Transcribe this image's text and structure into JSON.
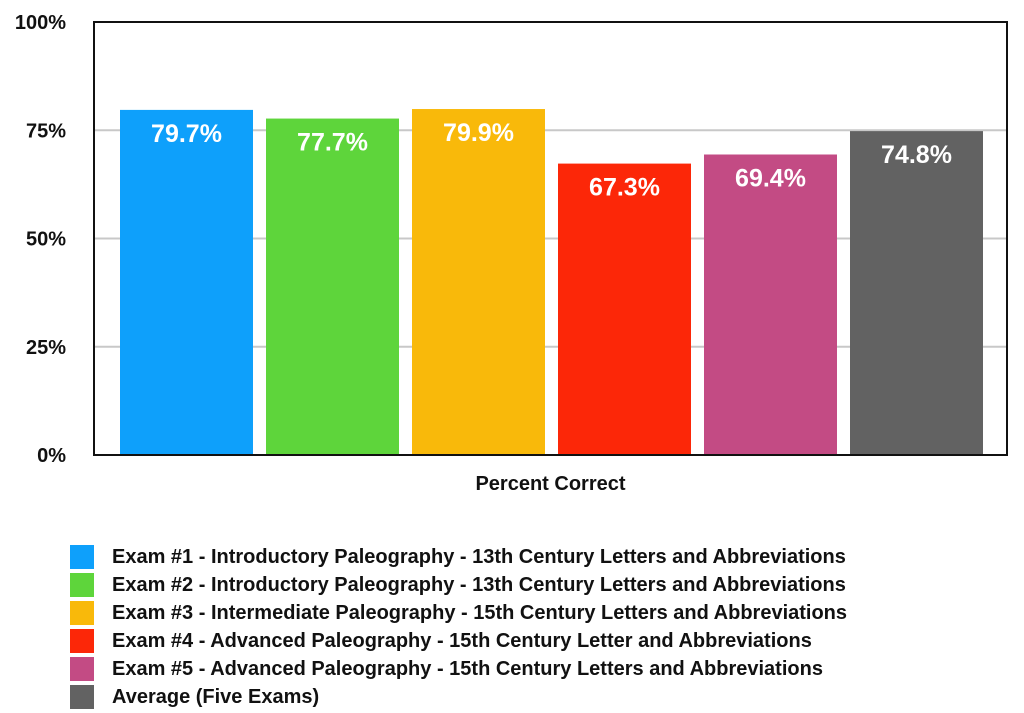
{
  "chart_data": {
    "type": "bar",
    "categories": [
      "Percent Correct"
    ],
    "xlabel": "Percent Correct",
    "ylabel": "",
    "ylim": [
      0,
      100
    ],
    "yticks": [
      "0%",
      "25%",
      "50%",
      "75%",
      "100%"
    ],
    "grid": true,
    "legend_placement": "bottom",
    "series": [
      {
        "name": "Exam #1 - Introductory Paleography - 13th Century Letters and Abbreviations",
        "values": [
          79.7
        ],
        "label": "79.7%",
        "color": "#0ea0fb"
      },
      {
        "name": "Exam #2 - Introductory Paleography - 13th Century Letters and Abbreviations",
        "values": [
          77.7
        ],
        "label": "77.7%",
        "color": "#5ed53b"
      },
      {
        "name": "Exam #3 - Intermediate Paleography - 15th Century Letters and Abbreviations",
        "values": [
          79.9
        ],
        "label": "79.9%",
        "color": "#f9b90a"
      },
      {
        "name": "Exam #4 - Advanced Paleography - 15th Century Letter and Abbreviations",
        "values": [
          67.3
        ],
        "label": "67.3%",
        "color": "#fc2708"
      },
      {
        "name": "Exam #5 - Advanced Paleography - 15th Century Letters and Abbreviations",
        "values": [
          69.4
        ],
        "label": "69.4%",
        "color": "#c34b84"
      },
      {
        "name": "Average (Five Exams)",
        "values": [
          74.8
        ],
        "label": "74.8%",
        "color": "#626262"
      }
    ]
  }
}
